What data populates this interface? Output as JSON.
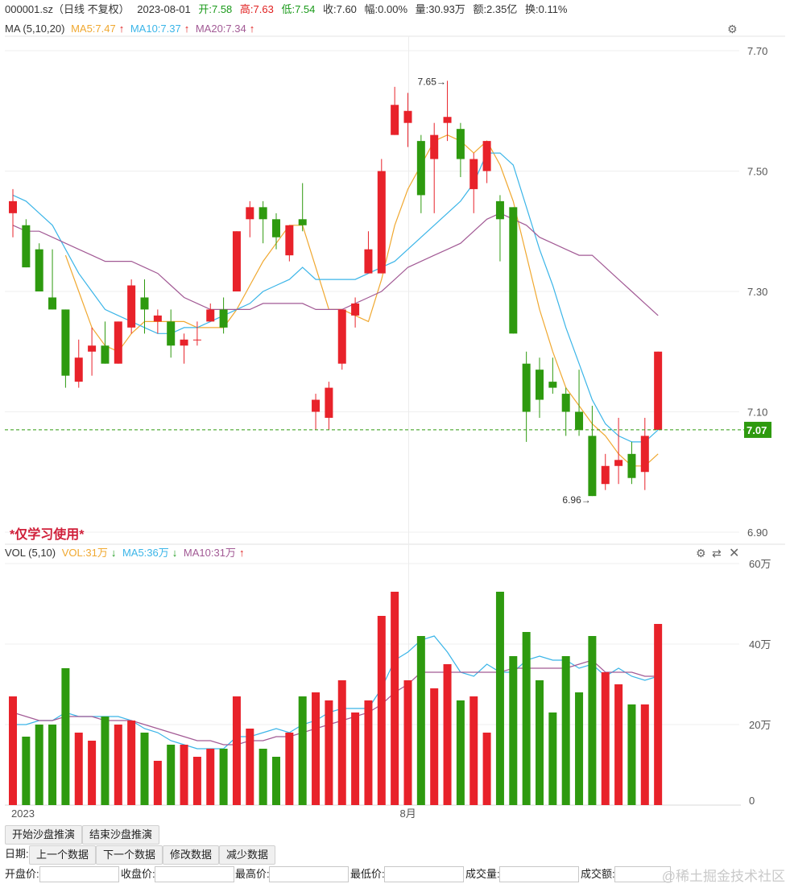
{
  "header": {
    "symbol": "000001.sz（日线 不复权）",
    "date": "2023-08-01",
    "open": "开:7.58",
    "high": "高:7.63",
    "low": "低:7.54",
    "close": "收:7.60",
    "amplitude": "幅:0.00%",
    "volume": "量:30.93万",
    "amount": "额:2.35亿",
    "turnover": "换:0.11%"
  },
  "ma_legend": {
    "title": "MA (5,10,20)",
    "ma5": "MA5:7.47",
    "ma10": "MA10:7.37",
    "ma20": "MA20:7.34",
    "arrow": "↑"
  },
  "vol_legend": {
    "title": "VOL (5,10)",
    "vol": "VOL:31万",
    "ma5": "MA5:36万",
    "ma10": "MA10:31万",
    "arrow_up": "↑",
    "arrow_down": "↓"
  },
  "warning": "*仅学习使用*",
  "price_labels": {
    "current": "7.07",
    "high_marker": "7.65→",
    "low_marker": "6.96→"
  },
  "x_axis": {
    "year": "2023",
    "month": "8月"
  },
  "toolbar": {
    "start": "开始沙盘推演",
    "end": "结束沙盘推演",
    "date_label": "日期:",
    "prev": "上一个数据",
    "next": "下一个数据",
    "modify": "修改数据",
    "reduce": "减少数据"
  },
  "form": {
    "open_label": "开盘价:",
    "close_label": "收盘价:",
    "high_label": "最高价:",
    "low_label": "最低价:",
    "volume_label": "成交量:",
    "amount_label": "成交额:",
    "open_value": "",
    "close_value": "",
    "high_value": "",
    "low_value": "",
    "volume_value": "",
    "amount_value": ""
  },
  "watermark": "@稀土掘金技术社区",
  "colors": {
    "up": "#e8222a",
    "down": "#2e9a0f",
    "ma5": "#f0a830",
    "ma10": "#3bb5e8",
    "ma20": "#a25a95",
    "dash": "#2e9a0f"
  },
  "chart_data": [
    {
      "type": "candlestick",
      "title": "",
      "ylim": [
        6.9,
        7.7
      ],
      "yticks": [
        "7.70",
        "7.50",
        "7.30",
        "7.10",
        "6.90"
      ],
      "candles": [
        {
          "o": 7.43,
          "c": 7.45,
          "h": 7.47,
          "l": 7.39
        },
        {
          "o": 7.41,
          "c": 7.34,
          "h": 7.42,
          "l": 7.34
        },
        {
          "o": 7.37,
          "c": 7.3,
          "h": 7.38,
          "l": 7.3
        },
        {
          "o": 7.29,
          "c": 7.27,
          "h": 7.37,
          "l": 7.27
        },
        {
          "o": 7.27,
          "c": 7.16,
          "h": 7.27,
          "l": 7.14
        },
        {
          "o": 7.15,
          "c": 7.19,
          "h": 7.22,
          "l": 7.14
        },
        {
          "o": 7.2,
          "c": 7.21,
          "h": 7.24,
          "l": 7.16
        },
        {
          "o": 7.21,
          "c": 7.18,
          "h": 7.25,
          "l": 7.18
        },
        {
          "o": 7.18,
          "c": 7.25,
          "h": 7.25,
          "l": 7.18
        },
        {
          "o": 7.24,
          "c": 7.31,
          "h": 7.32,
          "l": 7.23
        },
        {
          "o": 7.29,
          "c": 7.27,
          "h": 7.32,
          "l": 7.23
        },
        {
          "o": 7.25,
          "c": 7.26,
          "h": 7.27,
          "l": 7.23
        },
        {
          "o": 7.25,
          "c": 7.21,
          "h": 7.27,
          "l": 7.19
        },
        {
          "o": 7.21,
          "c": 7.22,
          "h": 7.23,
          "l": 7.18
        },
        {
          "o": 7.22,
          "c": 7.22,
          "h": 7.25,
          "l": 7.21
        },
        {
          "o": 7.25,
          "c": 7.27,
          "h": 7.28,
          "l": 7.25
        },
        {
          "o": 7.27,
          "c": 7.24,
          "h": 7.29,
          "l": 7.23
        },
        {
          "o": 7.3,
          "c": 7.4,
          "h": 7.4,
          "l": 7.3
        },
        {
          "o": 7.42,
          "c": 7.44,
          "h": 7.45,
          "l": 7.39
        },
        {
          "o": 7.44,
          "c": 7.42,
          "h": 7.45,
          "l": 7.38
        },
        {
          "o": 7.42,
          "c": 7.39,
          "h": 7.43,
          "l": 7.37
        },
        {
          "o": 7.36,
          "c": 7.41,
          "h": 7.41,
          "l": 7.35
        },
        {
          "o": 7.42,
          "c": 7.41,
          "h": 7.48,
          "l": 7.4
        },
        {
          "o": 7.1,
          "c": 7.12,
          "h": 7.13,
          "l": 7.07
        },
        {
          "o": 7.09,
          "c": 7.14,
          "h": 7.15,
          "l": 7.07
        },
        {
          "o": 7.18,
          "c": 7.27,
          "h": 7.27,
          "l": 7.17
        },
        {
          "o": 7.26,
          "c": 7.28,
          "h": 7.29,
          "l": 7.24
        },
        {
          "o": 7.33,
          "c": 7.37,
          "h": 7.4,
          "l": 7.33
        },
        {
          "o": 7.33,
          "c": 7.5,
          "h": 7.52,
          "l": 7.33
        },
        {
          "o": 7.56,
          "c": 7.61,
          "h": 7.64,
          "l": 7.56
        },
        {
          "o": 7.58,
          "c": 7.6,
          "h": 7.63,
          "l": 7.54
        },
        {
          "o": 7.55,
          "c": 7.46,
          "h": 7.56,
          "l": 7.43
        },
        {
          "o": 7.52,
          "c": 7.56,
          "h": 7.58,
          "l": 7.43
        },
        {
          "o": 7.58,
          "c": 7.59,
          "h": 7.65,
          "l": 7.55
        },
        {
          "o": 7.57,
          "c": 7.52,
          "h": 7.58,
          "l": 7.49
        },
        {
          "o": 7.47,
          "c": 7.52,
          "h": 7.53,
          "l": 7.43
        },
        {
          "o": 7.5,
          "c": 7.55,
          "h": 7.55,
          "l": 7.48
        },
        {
          "o": 7.45,
          "c": 7.42,
          "h": 7.46,
          "l": 7.35
        },
        {
          "o": 7.44,
          "c": 7.23,
          "h": 7.44,
          "l": 7.23
        },
        {
          "o": 7.18,
          "c": 7.1,
          "h": 7.2,
          "l": 7.05
        },
        {
          "o": 7.17,
          "c": 7.12,
          "h": 7.19,
          "l": 7.09
        },
        {
          "o": 7.15,
          "c": 7.14,
          "h": 7.19,
          "l": 7.13
        },
        {
          "o": 7.13,
          "c": 7.1,
          "h": 7.14,
          "l": 7.06
        },
        {
          "o": 7.1,
          "c": 7.07,
          "h": 7.17,
          "l": 7.06
        },
        {
          "o": 7.06,
          "c": 6.96,
          "h": 7.11,
          "l": 6.96
        },
        {
          "o": 6.98,
          "c": 7.01,
          "h": 7.03,
          "l": 6.97
        },
        {
          "o": 7.01,
          "c": 7.02,
          "h": 7.09,
          "l": 6.98
        },
        {
          "o": 7.03,
          "c": 6.99,
          "h": 7.05,
          "l": 6.98
        },
        {
          "o": 7.0,
          "c": 7.06,
          "h": 7.09,
          "l": 6.97
        },
        {
          "o": 7.07,
          "c": 7.2,
          "h": 7.2,
          "l": 7.07
        }
      ],
      "series": [
        {
          "name": "MA5",
          "values": [
            null,
            null,
            null,
            null,
            7.36,
            7.3,
            7.24,
            7.21,
            7.2,
            7.23,
            7.25,
            7.25,
            7.25,
            7.25,
            7.24,
            7.24,
            7.24,
            7.27,
            7.31,
            7.35,
            7.38,
            7.41,
            7.41,
            7.34,
            7.27,
            7.27,
            7.26,
            7.25,
            7.32,
            7.41,
            7.47,
            7.51,
            7.55,
            7.56,
            7.55,
            7.53,
            7.55,
            7.51,
            7.45,
            7.36,
            7.27,
            7.2,
            7.14,
            7.11,
            7.08,
            7.06,
            7.03,
            7.01,
            7.01,
            7.03
          ]
        },
        {
          "name": "MA10",
          "values": [
            7.46,
            7.45,
            7.43,
            7.41,
            7.37,
            7.33,
            7.3,
            7.27,
            7.26,
            7.25,
            7.24,
            7.23,
            7.23,
            7.24,
            7.24,
            7.25,
            7.26,
            7.27,
            7.28,
            7.3,
            7.31,
            7.32,
            7.34,
            7.32,
            7.32,
            7.32,
            7.32,
            7.33,
            7.34,
            7.35,
            7.37,
            7.39,
            7.41,
            7.43,
            7.45,
            7.48,
            7.53,
            7.53,
            7.51,
            7.44,
            7.37,
            7.31,
            7.24,
            7.18,
            7.12,
            7.08,
            7.06,
            7.05,
            7.05,
            7.07
          ]
        },
        {
          "name": "MA20",
          "values": [
            7.41,
            7.4,
            7.4,
            7.39,
            7.38,
            7.37,
            7.36,
            7.35,
            7.35,
            7.35,
            7.34,
            7.33,
            7.31,
            7.29,
            7.28,
            7.27,
            7.27,
            7.27,
            7.27,
            7.28,
            7.28,
            7.28,
            7.28,
            7.27,
            7.27,
            7.27,
            7.28,
            7.29,
            7.3,
            7.32,
            7.34,
            7.35,
            7.36,
            7.37,
            7.38,
            7.4,
            7.42,
            7.43,
            7.42,
            7.41,
            7.39,
            7.38,
            7.37,
            7.36,
            7.36,
            7.34,
            7.32,
            7.3,
            7.28,
            7.26
          ]
        }
      ]
    },
    {
      "type": "bar",
      "title": "",
      "unit": "万",
      "ylim": [
        0,
        60
      ],
      "yticks": [
        "60万",
        "40万",
        "20万",
        "0"
      ],
      "values": [
        27,
        17,
        20,
        20,
        34,
        18,
        16,
        22,
        20,
        21,
        18,
        11,
        15,
        15,
        12,
        14,
        14,
        27,
        19,
        14,
        12,
        18,
        27,
        28,
        26,
        31,
        23,
        26,
        47,
        53,
        31,
        42,
        29,
        35,
        26,
        27,
        18,
        53,
        37,
        43,
        31,
        23,
        37,
        28,
        42,
        33,
        30,
        25,
        25,
        45
      ],
      "series": [
        {
          "name": "MA5",
          "values": [
            20,
            20,
            21,
            21,
            23,
            22,
            22,
            22,
            22,
            21,
            19,
            18,
            16,
            15,
            14,
            14,
            14,
            17,
            17,
            18,
            19,
            18,
            20,
            21,
            23,
            24,
            24,
            24,
            29,
            36,
            38,
            41,
            42,
            38,
            33,
            32,
            35,
            33,
            33,
            36,
            37,
            36,
            36,
            34,
            35,
            32,
            34,
            32,
            31,
            32
          ]
        },
        {
          "name": "MA10",
          "values": [
            23,
            22,
            21,
            21,
            22,
            22,
            22,
            21,
            21,
            21,
            20,
            19,
            18,
            17,
            16,
            16,
            15,
            15,
            16,
            16,
            17,
            17,
            18,
            19,
            20,
            21,
            22,
            23,
            25,
            28,
            30,
            33,
            33,
            33,
            33,
            33,
            33,
            33,
            34,
            34,
            34,
            34,
            34,
            35,
            36,
            33,
            33,
            33,
            32,
            32
          ]
        }
      ],
      "xlabels": [
        "2023",
        "8月"
      ]
    }
  ]
}
